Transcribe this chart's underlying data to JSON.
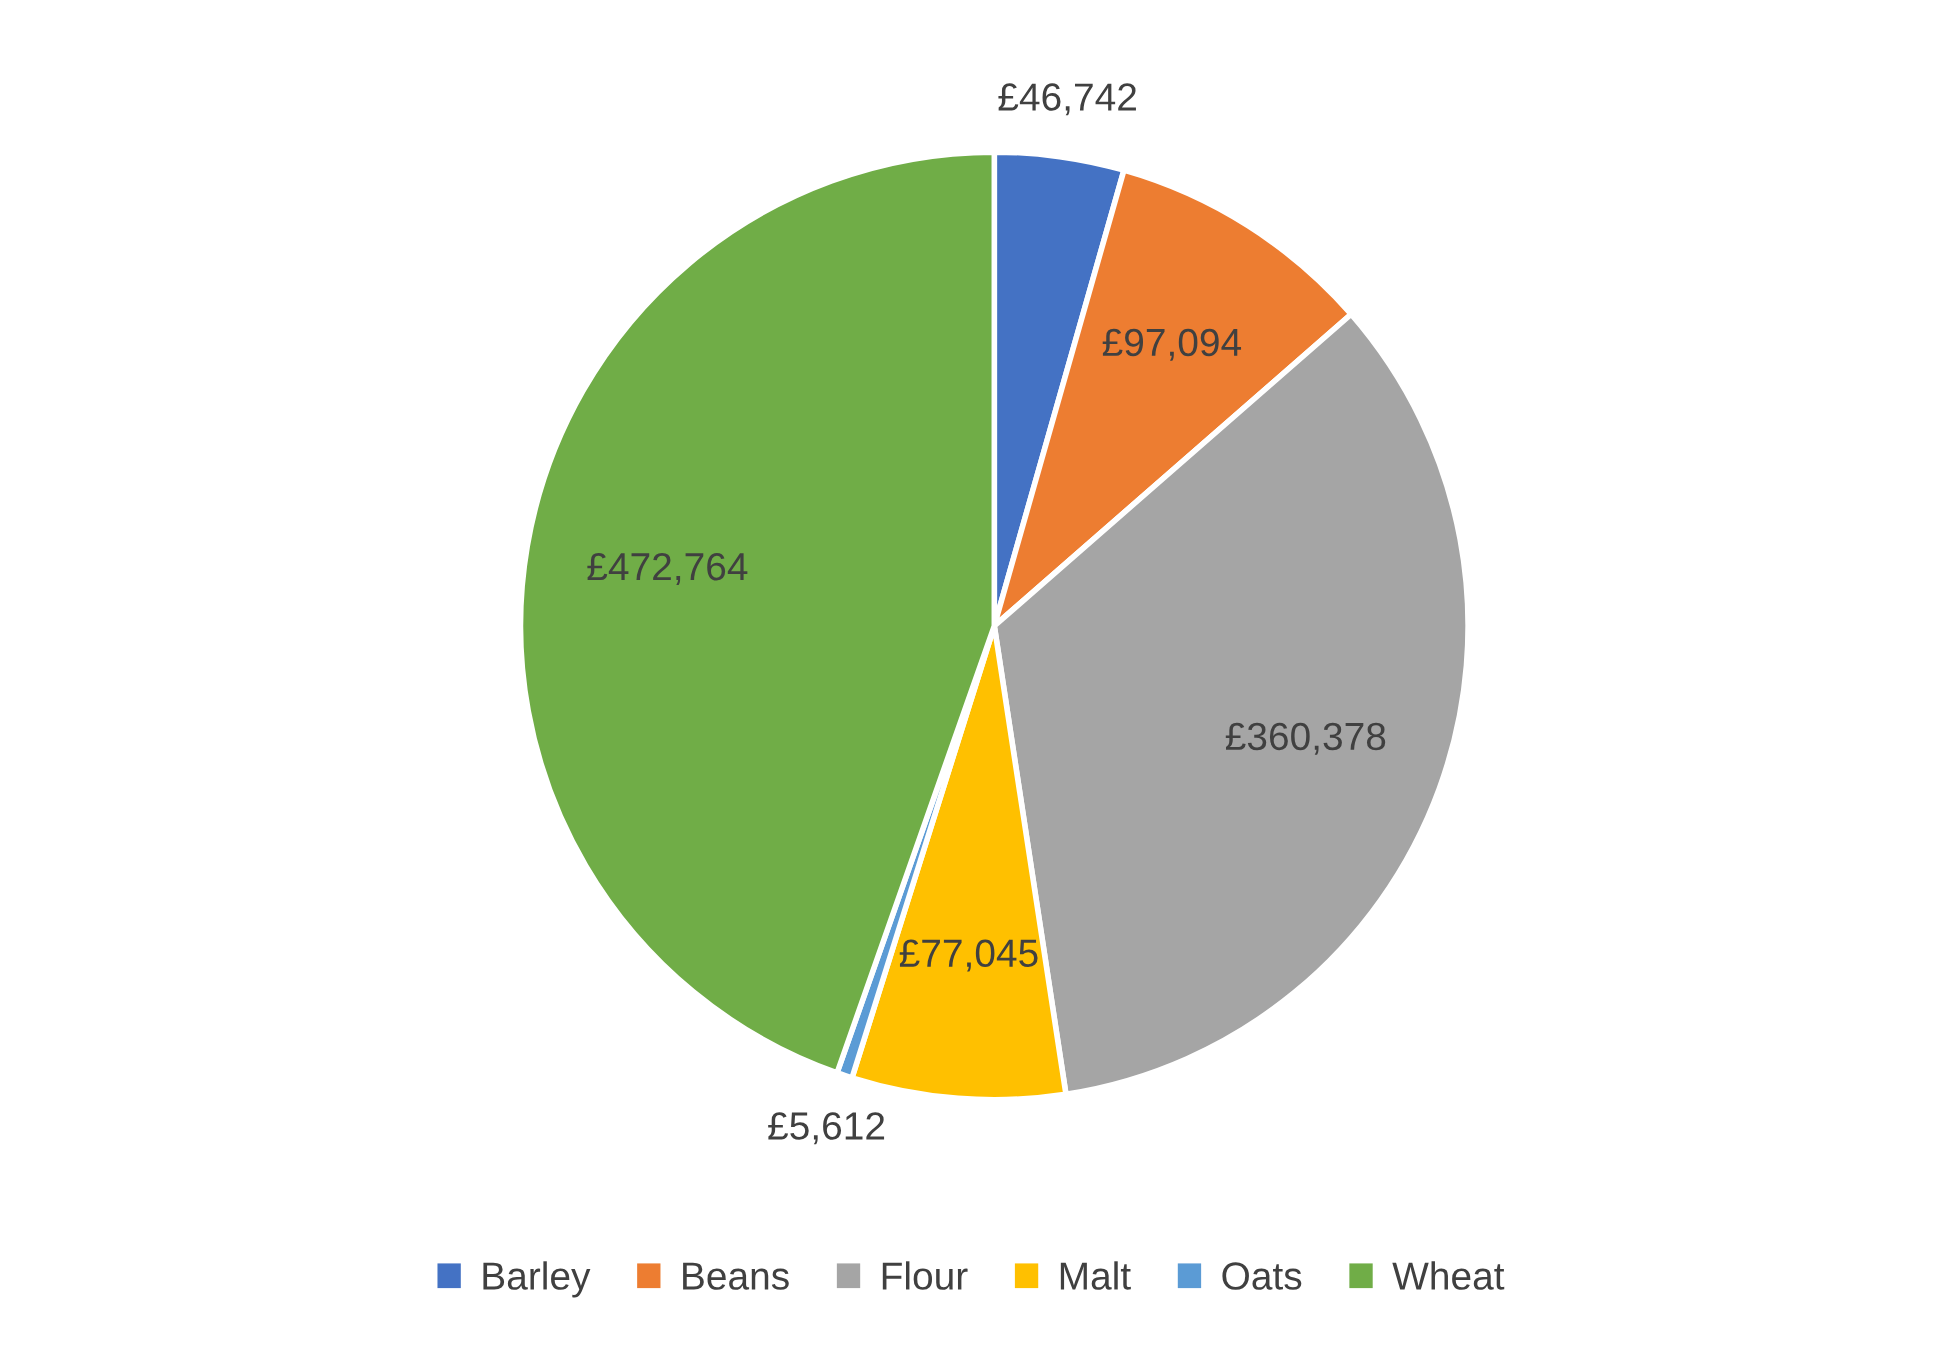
{
  "chart_data": {
    "type": "pie",
    "categories": [
      "Barley",
      "Beans",
      "Flour",
      "Malt",
      "Oats",
      "Wheat"
    ],
    "values": [
      46742,
      97094,
      360378,
      77045,
      5612,
      472764
    ],
    "value_labels": [
      "£46,742",
      "£97,094",
      "£360,378",
      "£77,045",
      "£5,612",
      "£472,764"
    ],
    "colors": [
      "#4472c4",
      "#ed7d31",
      "#a5a5a5",
      "#ffc000",
      "#5b9bd5",
      "#70ad47"
    ],
    "legend": "bottom"
  }
}
